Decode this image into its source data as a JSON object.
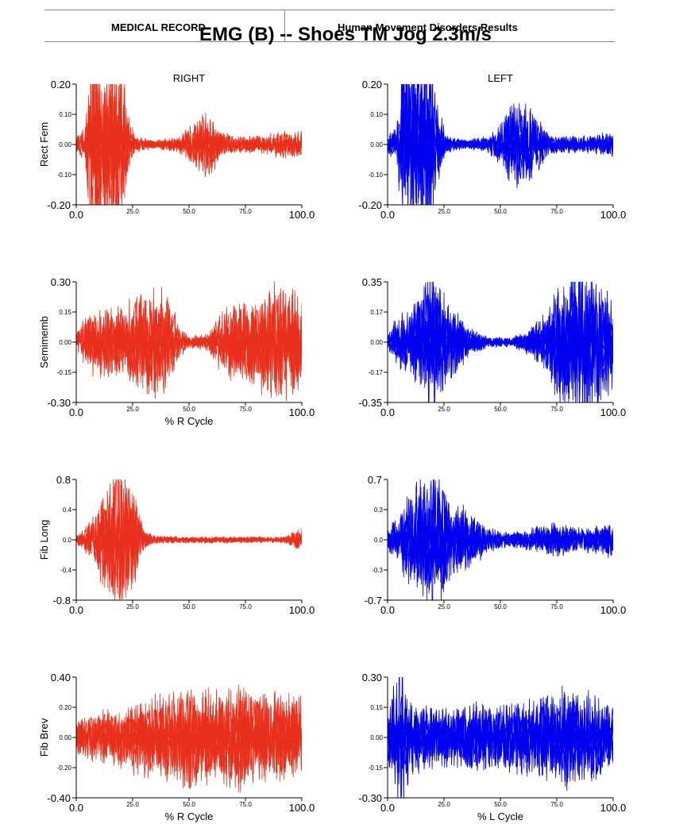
{
  "header": {
    "left_label": "MEDICAL RECORD",
    "right_label": "Human Movement Disorders Results",
    "title": "EMG (B) -- Shoes TM Jog 2.3m/s"
  },
  "columns": {
    "right": "RIGHT",
    "left": "LEFT"
  },
  "colors": {
    "right_trace": "#e8301c",
    "left_trace": "#0000ee"
  },
  "chart_data": [
    {
      "type": "line",
      "muscle": "Rect Fem",
      "side": "RIGHT",
      "color": "#e8301c",
      "ylim": [
        -0.2,
        0.2
      ],
      "xlim": [
        0,
        100
      ],
      "y_ticks": [
        "0.20",
        "0.10",
        "0.00",
        "-0.10",
        "-0.20"
      ],
      "x_ticks": [
        "0.0",
        "25.0",
        "50.0",
        "75.0",
        "100.0"
      ],
      "xlabel": "",
      "envelope": [
        [
          0,
          0.02
        ],
        [
          4,
          0.04
        ],
        [
          6,
          0.2
        ],
        [
          10,
          0.2
        ],
        [
          16,
          0.2
        ],
        [
          20,
          0.2
        ],
        [
          23,
          0.08
        ],
        [
          26,
          0.02
        ],
        [
          35,
          0.01
        ],
        [
          45,
          0.02
        ],
        [
          50,
          0.04
        ],
        [
          55,
          0.07
        ],
        [
          60,
          0.07
        ],
        [
          64,
          0.03
        ],
        [
          70,
          0.02
        ],
        [
          80,
          0.02
        ],
        [
          90,
          0.03
        ],
        [
          100,
          0.03
        ]
      ]
    },
    {
      "type": "line",
      "muscle": "Rect Fem",
      "side": "LEFT",
      "color": "#0000ee",
      "ylim": [
        -0.2,
        0.2
      ],
      "xlim": [
        0,
        100
      ],
      "y_ticks": [
        "0.20",
        "0.10",
        "0.00",
        "-0.10",
        "-0.20"
      ],
      "x_ticks": [
        "0.0",
        "25.0",
        "50.0",
        "75.0",
        "100.0"
      ],
      "xlabel": "",
      "envelope": [
        [
          0,
          0.02
        ],
        [
          4,
          0.04
        ],
        [
          6,
          0.2
        ],
        [
          12,
          0.2
        ],
        [
          18,
          0.2
        ],
        [
          22,
          0.1
        ],
        [
          26,
          0.02
        ],
        [
          35,
          0.01
        ],
        [
          45,
          0.02
        ],
        [
          50,
          0.05
        ],
        [
          55,
          0.09
        ],
        [
          62,
          0.1
        ],
        [
          68,
          0.05
        ],
        [
          72,
          0.02
        ],
        [
          80,
          0.02
        ],
        [
          90,
          0.02
        ],
        [
          100,
          0.03
        ]
      ]
    },
    {
      "type": "line",
      "muscle": "Semimemb",
      "side": "RIGHT",
      "color": "#e8301c",
      "ylim": [
        -0.3,
        0.3
      ],
      "xlim": [
        0,
        100
      ],
      "y_ticks": [
        "0.30",
        "0.15",
        "0.00",
        "-0.15",
        "-0.30"
      ],
      "x_ticks": [
        "0.0",
        "25.0",
        "50.0",
        "75.0",
        "100.0"
      ],
      "xlabel": "% R Cycle",
      "envelope": [
        [
          0,
          0.03
        ],
        [
          5,
          0.1
        ],
        [
          10,
          0.12
        ],
        [
          20,
          0.12
        ],
        [
          30,
          0.18
        ],
        [
          40,
          0.18
        ],
        [
          46,
          0.05
        ],
        [
          50,
          0.02
        ],
        [
          58,
          0.03
        ],
        [
          64,
          0.1
        ],
        [
          70,
          0.14
        ],
        [
          80,
          0.15
        ],
        [
          85,
          0.22
        ],
        [
          90,
          0.2
        ],
        [
          100,
          0.15
        ]
      ]
    },
    {
      "type": "line",
      "muscle": "Semimemb",
      "side": "LEFT",
      "color": "#0000ee",
      "ylim": [
        -0.35,
        0.35
      ],
      "xlim": [
        0,
        100
      ],
      "y_ticks": [
        "0.35",
        "0.17",
        "0.00",
        "-0.17",
        "-0.35"
      ],
      "x_ticks": [
        "0.0",
        "25.0",
        "50.0",
        "75.0",
        "100.0"
      ],
      "xlabel": "",
      "envelope": [
        [
          0,
          0.03
        ],
        [
          5,
          0.12
        ],
        [
          10,
          0.14
        ],
        [
          18,
          0.28
        ],
        [
          25,
          0.2
        ],
        [
          30,
          0.14
        ],
        [
          36,
          0.06
        ],
        [
          45,
          0.02
        ],
        [
          55,
          0.02
        ],
        [
          62,
          0.05
        ],
        [
          70,
          0.12
        ],
        [
          76,
          0.25
        ],
        [
          85,
          0.32
        ],
        [
          92,
          0.32
        ],
        [
          100,
          0.18
        ]
      ]
    },
    {
      "type": "line",
      "muscle": "Fib Long",
      "side": "RIGHT",
      "color": "#e8301c",
      "ylim": [
        -0.8,
        0.8
      ],
      "xlim": [
        0,
        100
      ],
      "y_ticks": [
        "0.8",
        "0.4",
        "0.0",
        "-0.4",
        "-0.8"
      ],
      "x_ticks": [
        "0.0",
        "25.0",
        "50.0",
        "75.0",
        "100.0"
      ],
      "xlabel": "",
      "envelope": [
        [
          0,
          0.04
        ],
        [
          3,
          0.1
        ],
        [
          8,
          0.25
        ],
        [
          12,
          0.45
        ],
        [
          16,
          0.65
        ],
        [
          20,
          0.75
        ],
        [
          25,
          0.5
        ],
        [
          30,
          0.1
        ],
        [
          35,
          0.04
        ],
        [
          50,
          0.03
        ],
        [
          70,
          0.03
        ],
        [
          92,
          0.03
        ],
        [
          97,
          0.08
        ],
        [
          100,
          0.12
        ]
      ]
    },
    {
      "type": "line",
      "muscle": "Fib Long",
      "side": "LEFT",
      "color": "#0000ee",
      "ylim": [
        -0.7,
        0.7
      ],
      "xlim": [
        0,
        100
      ],
      "y_ticks": [
        "0.7",
        "0.3",
        "0.0",
        "-0.3",
        "-0.7"
      ],
      "x_ticks": [
        "0.0",
        "25.0",
        "50.0",
        "75.0",
        "100.0"
      ],
      "xlabel": "",
      "envelope": [
        [
          0,
          0.1
        ],
        [
          5,
          0.2
        ],
        [
          10,
          0.4
        ],
        [
          16,
          0.5
        ],
        [
          22,
          0.6
        ],
        [
          28,
          0.35
        ],
        [
          35,
          0.25
        ],
        [
          45,
          0.1
        ],
        [
          55,
          0.06
        ],
        [
          65,
          0.1
        ],
        [
          75,
          0.14
        ],
        [
          85,
          0.1
        ],
        [
          95,
          0.12
        ],
        [
          100,
          0.18
        ]
      ]
    },
    {
      "type": "line",
      "muscle": "Fib Brev",
      "side": "RIGHT",
      "color": "#e8301c",
      "ylim": [
        -0.4,
        0.4
      ],
      "xlim": [
        0,
        100
      ],
      "y_ticks": [
        "0.40",
        "0.20",
        "0.00",
        "-0.20",
        "-0.40"
      ],
      "x_ticks": [
        "0.0",
        "25.0",
        "50.0",
        "75.0",
        "100.0"
      ],
      "xlabel": "% R Cycle",
      "envelope": [
        [
          0,
          0.08
        ],
        [
          10,
          0.12
        ],
        [
          20,
          0.14
        ],
        [
          30,
          0.18
        ],
        [
          40,
          0.2
        ],
        [
          48,
          0.25
        ],
        [
          55,
          0.2
        ],
        [
          65,
          0.22
        ],
        [
          72,
          0.24
        ],
        [
          82,
          0.2
        ],
        [
          90,
          0.22
        ],
        [
          100,
          0.18
        ]
      ]
    },
    {
      "type": "line",
      "muscle": "Fib Brev",
      "side": "LEFT",
      "color": "#0000ee",
      "ylim": [
        -0.3,
        0.3
      ],
      "xlim": [
        0,
        100
      ],
      "y_ticks": [
        "0.30",
        "0.15",
        "0.00",
        "-0.15",
        "-0.30"
      ],
      "x_ticks": [
        "0.0",
        "25.0",
        "50.0",
        "75.0",
        "100.0"
      ],
      "xlabel": "% L Cycle",
      "envelope": [
        [
          0,
          0.08
        ],
        [
          3,
          0.2
        ],
        [
          6,
          0.28
        ],
        [
          9,
          0.15
        ],
        [
          15,
          0.12
        ],
        [
          25,
          0.1
        ],
        [
          40,
          0.12
        ],
        [
          55,
          0.12
        ],
        [
          70,
          0.14
        ],
        [
          80,
          0.18
        ],
        [
          90,
          0.15
        ],
        [
          100,
          0.1
        ]
      ]
    }
  ]
}
